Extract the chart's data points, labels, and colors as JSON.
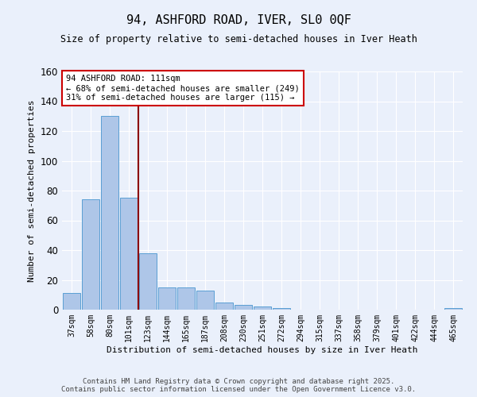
{
  "title1": "94, ASHFORD ROAD, IVER, SL0 0QF",
  "title2": "Size of property relative to semi-detached houses in Iver Heath",
  "xlabel": "Distribution of semi-detached houses by size in Iver Heath",
  "ylabel": "Number of semi-detached properties",
  "categories": [
    "37sqm",
    "58sqm",
    "80sqm",
    "101sqm",
    "123sqm",
    "144sqm",
    "165sqm",
    "187sqm",
    "208sqm",
    "230sqm",
    "251sqm",
    "272sqm",
    "294sqm",
    "315sqm",
    "337sqm",
    "358sqm",
    "379sqm",
    "401sqm",
    "422sqm",
    "444sqm",
    "465sqm"
  ],
  "values": [
    11,
    74,
    130,
    75,
    38,
    15,
    15,
    13,
    5,
    3,
    2,
    1,
    0,
    0,
    0,
    0,
    0,
    0,
    0,
    0,
    1
  ],
  "bar_color": "#aec6e8",
  "bar_edge_color": "#5a9fd4",
  "vline_x": 3.5,
  "vline_color": "#8b0000",
  "annotation_text": "94 ASHFORD ROAD: 111sqm\n← 68% of semi-detached houses are smaller (249)\n31% of semi-detached houses are larger (115) →",
  "annotation_box_color": "white",
  "annotation_box_edge": "#cc0000",
  "ylim": [
    0,
    160
  ],
  "yticks": [
    0,
    20,
    40,
    60,
    80,
    100,
    120,
    140,
    160
  ],
  "background_color": "#eaf0fb",
  "grid_color": "white",
  "footer1": "Contains HM Land Registry data © Crown copyright and database right 2025.",
  "footer2": "Contains public sector information licensed under the Open Government Licence v3.0."
}
